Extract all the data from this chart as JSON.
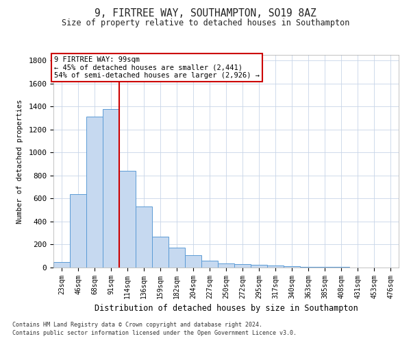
{
  "title1": "9, FIRTREE WAY, SOUTHAMPTON, SO19 8AZ",
  "title2": "Size of property relative to detached houses in Southampton",
  "xlabel": "Distribution of detached houses by size in Southampton",
  "ylabel": "Number of detached properties",
  "footer1": "Contains HM Land Registry data © Crown copyright and database right 2024.",
  "footer2": "Contains public sector information licensed under the Open Government Licence v3.0.",
  "annotation_title": "9 FIRTREE WAY: 99sqm",
  "annotation_line1": "← 45% of detached houses are smaller (2,441)",
  "annotation_line2": "54% of semi-detached houses are larger (2,926) →",
  "bar_color": "#c6d9f0",
  "bar_edge_color": "#5b9bd5",
  "red_line_color": "#cc0000",
  "annotation_box_edge_color": "#cc0000",
  "categories": [
    "23sqm",
    "46sqm",
    "68sqm",
    "91sqm",
    "114sqm",
    "136sqm",
    "159sqm",
    "182sqm",
    "204sqm",
    "227sqm",
    "250sqm",
    "272sqm",
    "295sqm",
    "317sqm",
    "340sqm",
    "363sqm",
    "385sqm",
    "408sqm",
    "431sqm",
    "453sqm",
    "476sqm"
  ],
  "values": [
    50,
    640,
    1310,
    1380,
    840,
    530,
    270,
    175,
    105,
    60,
    35,
    30,
    25,
    20,
    10,
    5,
    5,
    3,
    2,
    1,
    1
  ],
  "ylim": [
    0,
    1850
  ],
  "red_line_x": 3.5,
  "yticks": [
    0,
    200,
    400,
    600,
    800,
    1000,
    1200,
    1400,
    1600,
    1800
  ],
  "background_color": "#ffffff",
  "grid_color": "#c8d4e8"
}
